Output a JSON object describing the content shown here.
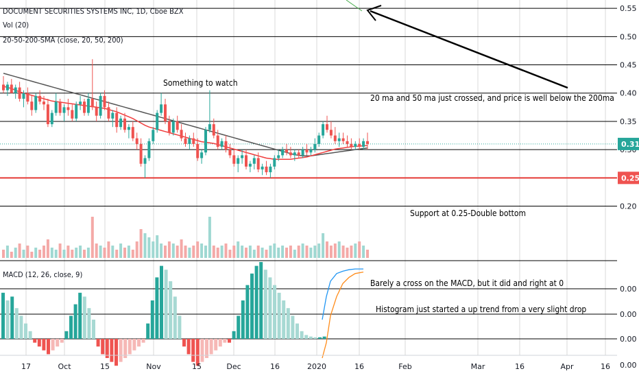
{
  "header": {
    "title": "DOCUMENT SECURITIES SYSTEMS INC, 1D, Cboe BZX",
    "vol_label": "Vol (20)",
    "sma_label": "20-50-200-SMA (close, 20, 50, 200)",
    "macd_label": "MACD (12, 26, close, 9)"
  },
  "annotations": {
    "watch": "Something to watch",
    "ma_cross": "20 ma and 50 ma just crossed, and price is well below the 200ma",
    "support": "Support at 0.25-Double bottom",
    "macd_cross": "Barely a cross on the MACD, but it did and right at 0",
    "histogram": "Histogram just started a up trend from a very slight drop"
  },
  "colors": {
    "up": "#26a69a",
    "down": "#ef5350",
    "vol_up": "#9fd8d2",
    "vol_down": "#f4a9a7",
    "sma20": "#f03c3c",
    "sma50": "#555555",
    "macd_line": "#2196f3",
    "signal_line": "#ff8c1a",
    "support_line": "#e53935",
    "last_price_badge": "#26a69a",
    "support_badge": "#ef5350"
  },
  "chart_data": {
    "type": "candlestick",
    "x_tick_labels": [
      "17",
      "Oct",
      "15",
      "Nov",
      "15",
      "Dec",
      "16",
      "2020",
      "16",
      "Feb",
      "Mar",
      "16",
      "Apr",
      "16"
    ],
    "price_axis": {
      "ticks": [
        "0.55",
        "0.50",
        "0.45",
        "0.40",
        "0.35",
        "0.30",
        "0.20"
      ],
      "ylim": [
        0.14,
        0.555
      ],
      "last_price_label": "0.31",
      "last_price": 0.31,
      "support_label": "0.25",
      "support_price": 0.25
    },
    "macd_axis": {
      "ticks": [
        "0.00",
        "0.00",
        "0.00",
        "0.00"
      ]
    },
    "price_candles_ohlc": [
      [
        0.415,
        0.43,
        0.4,
        0.405
      ],
      [
        0.405,
        0.42,
        0.395,
        0.415
      ],
      [
        0.415,
        0.425,
        0.4,
        0.4
      ],
      [
        0.4,
        0.415,
        0.39,
        0.41
      ],
      [
        0.41,
        0.42,
        0.385,
        0.39
      ],
      [
        0.39,
        0.405,
        0.375,
        0.4
      ],
      [
        0.4,
        0.41,
        0.38,
        0.385
      ],
      [
        0.385,
        0.395,
        0.36,
        0.37
      ],
      [
        0.37,
        0.4,
        0.365,
        0.395
      ],
      [
        0.395,
        0.405,
        0.38,
        0.385
      ],
      [
        0.385,
        0.395,
        0.37,
        0.38
      ],
      [
        0.38,
        0.39,
        0.34,
        0.345
      ],
      [
        0.345,
        0.37,
        0.34,
        0.365
      ],
      [
        0.365,
        0.4,
        0.36,
        0.385
      ],
      [
        0.385,
        0.39,
        0.36,
        0.365
      ],
      [
        0.365,
        0.38,
        0.35,
        0.375
      ],
      [
        0.375,
        0.39,
        0.36,
        0.37
      ],
      [
        0.37,
        0.38,
        0.35,
        0.355
      ],
      [
        0.355,
        0.385,
        0.35,
        0.38
      ],
      [
        0.38,
        0.395,
        0.37,
        0.385
      ],
      [
        0.385,
        0.39,
        0.36,
        0.365
      ],
      [
        0.365,
        0.4,
        0.36,
        0.39
      ],
      [
        0.39,
        0.46,
        0.37,
        0.375
      ],
      [
        0.375,
        0.385,
        0.35,
        0.36
      ],
      [
        0.36,
        0.4,
        0.355,
        0.395
      ],
      [
        0.395,
        0.405,
        0.37,
        0.375
      ],
      [
        0.375,
        0.385,
        0.35,
        0.355
      ],
      [
        0.355,
        0.37,
        0.34,
        0.365
      ],
      [
        0.365,
        0.375,
        0.33,
        0.34
      ],
      [
        0.34,
        0.36,
        0.335,
        0.355
      ],
      [
        0.355,
        0.365,
        0.33,
        0.335
      ],
      [
        0.335,
        0.345,
        0.32,
        0.34
      ],
      [
        0.34,
        0.35,
        0.315,
        0.32
      ],
      [
        0.32,
        0.33,
        0.3,
        0.31
      ],
      [
        0.31,
        0.32,
        0.27,
        0.275
      ],
      [
        0.275,
        0.29,
        0.25,
        0.285
      ],
      [
        0.285,
        0.32,
        0.28,
        0.315
      ],
      [
        0.315,
        0.34,
        0.31,
        0.335
      ],
      [
        0.335,
        0.37,
        0.33,
        0.365
      ],
      [
        0.365,
        0.4,
        0.36,
        0.38
      ],
      [
        0.38,
        0.39,
        0.345,
        0.35
      ],
      [
        0.35,
        0.36,
        0.325,
        0.33
      ],
      [
        0.33,
        0.355,
        0.325,
        0.35
      ],
      [
        0.35,
        0.36,
        0.33,
        0.335
      ],
      [
        0.335,
        0.345,
        0.315,
        0.32
      ],
      [
        0.32,
        0.33,
        0.305,
        0.31
      ],
      [
        0.31,
        0.325,
        0.3,
        0.32
      ],
      [
        0.32,
        0.33,
        0.305,
        0.31
      ],
      [
        0.31,
        0.32,
        0.28,
        0.285
      ],
      [
        0.285,
        0.3,
        0.275,
        0.295
      ],
      [
        0.295,
        0.34,
        0.29,
        0.335
      ],
      [
        0.335,
        0.405,
        0.33,
        0.345
      ],
      [
        0.345,
        0.355,
        0.32,
        0.325
      ],
      [
        0.325,
        0.335,
        0.3,
        0.305
      ],
      [
        0.305,
        0.32,
        0.3,
        0.315
      ],
      [
        0.315,
        0.325,
        0.295,
        0.3
      ],
      [
        0.3,
        0.31,
        0.285,
        0.29
      ],
      [
        0.29,
        0.3,
        0.27,
        0.275
      ],
      [
        0.275,
        0.29,
        0.26,
        0.285
      ],
      [
        0.285,
        0.3,
        0.275,
        0.29
      ],
      [
        0.29,
        0.3,
        0.265,
        0.27
      ],
      [
        0.27,
        0.28,
        0.26,
        0.275
      ],
      [
        0.275,
        0.29,
        0.265,
        0.285
      ],
      [
        0.285,
        0.295,
        0.26,
        0.265
      ],
      [
        0.265,
        0.275,
        0.255,
        0.27
      ],
      [
        0.27,
        0.28,
        0.255,
        0.26
      ],
      [
        0.26,
        0.275,
        0.25,
        0.27
      ],
      [
        0.27,
        0.29,
        0.265,
        0.285
      ],
      [
        0.285,
        0.3,
        0.28,
        0.29
      ],
      [
        0.29,
        0.305,
        0.285,
        0.3
      ],
      [
        0.3,
        0.31,
        0.29,
        0.295
      ],
      [
        0.295,
        0.305,
        0.285,
        0.29
      ],
      [
        0.29,
        0.3,
        0.28,
        0.295
      ],
      [
        0.295,
        0.3,
        0.285,
        0.29
      ],
      [
        0.29,
        0.305,
        0.285,
        0.3
      ],
      [
        0.3,
        0.31,
        0.29,
        0.295
      ],
      [
        0.295,
        0.305,
        0.29,
        0.3
      ],
      [
        0.3,
        0.32,
        0.295,
        0.31
      ],
      [
        0.31,
        0.33,
        0.305,
        0.325
      ],
      [
        0.325,
        0.35,
        0.32,
        0.345
      ],
      [
        0.345,
        0.36,
        0.33,
        0.335
      ],
      [
        0.335,
        0.35,
        0.32,
        0.325
      ],
      [
        0.325,
        0.34,
        0.31,
        0.315
      ],
      [
        0.315,
        0.33,
        0.305,
        0.32
      ],
      [
        0.32,
        0.33,
        0.31,
        0.315
      ],
      [
        0.315,
        0.325,
        0.305,
        0.31
      ],
      [
        0.31,
        0.32,
        0.3,
        0.305
      ],
      [
        0.305,
        0.315,
        0.3,
        0.31
      ],
      [
        0.31,
        0.32,
        0.3,
        0.305
      ],
      [
        0.305,
        0.32,
        0.3,
        0.315
      ],
      [
        0.315,
        0.33,
        0.3,
        0.31
      ]
    ],
    "sma20": [
      0.412,
      0.41,
      0.408,
      0.405,
      0.402,
      0.4,
      0.398,
      0.396,
      0.394,
      0.392,
      0.39,
      0.388,
      0.386,
      0.385,
      0.384,
      0.383,
      0.382,
      0.381,
      0.38,
      0.379,
      0.378,
      0.377,
      0.376,
      0.375,
      0.374,
      0.373,
      0.371,
      0.369,
      0.367,
      0.364,
      0.361,
      0.358,
      0.355,
      0.351,
      0.347,
      0.343,
      0.34,
      0.338,
      0.336,
      0.334,
      0.332,
      0.33,
      0.328,
      0.326,
      0.324,
      0.322,
      0.32,
      0.318,
      0.316,
      0.314,
      0.313,
      0.312,
      0.311,
      0.309,
      0.307,
      0.305,
      0.303,
      0.301,
      0.299,
      0.297,
      0.295,
      0.293,
      0.291,
      0.289,
      0.287,
      0.285,
      0.284,
      0.283,
      0.283,
      0.283,
      0.283,
      0.283,
      0.284,
      0.285,
      0.286,
      0.287,
      0.289,
      0.291,
      0.293,
      0.295,
      0.297,
      0.299,
      0.301,
      0.302,
      0.303,
      0.304,
      0.305,
      0.306,
      0.306,
      0.307,
      0.307
    ],
    "sma50": [
      0.435,
      0.433,
      0.431,
      0.429,
      0.427,
      0.425,
      0.423,
      0.421,
      0.419,
      0.417,
      0.415,
      0.413,
      0.411,
      0.409,
      0.407,
      0.405,
      0.403,
      0.401,
      0.399,
      0.397,
      0.395,
      0.393,
      0.391,
      0.389,
      0.387,
      0.385,
      0.383,
      0.381,
      0.379,
      0.377,
      0.375,
      0.373,
      0.371,
      0.369,
      0.367,
      0.365,
      0.363,
      0.361,
      0.359,
      0.357,
      0.355,
      0.353,
      0.351,
      0.349,
      0.347,
      0.345,
      0.343,
      0.341,
      0.339,
      0.337,
      0.335,
      0.333,
      0.331,
      0.329,
      0.327,
      0.325,
      0.323,
      0.321,
      0.319,
      0.317,
      0.315,
      0.313,
      0.311,
      0.309,
      0.307,
      0.305,
      0.303,
      0.301,
      0.299,
      0.297,
      0.295,
      0.293,
      0.291,
      0.29,
      0.289,
      0.289,
      0.289,
      0.29,
      0.291,
      0.292,
      0.293,
      0.294,
      0.295,
      0.296,
      0.297,
      0.298,
      0.299,
      0.3,
      0.301,
      0.302,
      0.303
    ],
    "volume": [
      0.2,
      0.3,
      0.15,
      0.25,
      0.35,
      0.2,
      0.3,
      0.15,
      0.25,
      0.2,
      0.3,
      0.45,
      0.25,
      0.2,
      0.35,
      0.2,
      0.3,
      0.2,
      0.25,
      0.3,
      0.2,
      0.25,
      1.0,
      0.35,
      0.3,
      0.25,
      0.4,
      0.3,
      0.2,
      0.35,
      0.25,
      0.3,
      0.2,
      0.4,
      0.7,
      0.6,
      0.5,
      0.4,
      0.55,
      0.35,
      0.3,
      0.4,
      0.35,
      0.3,
      0.45,
      0.3,
      0.25,
      0.3,
      0.4,
      0.35,
      0.3,
      1.0,
      0.3,
      0.25,
      0.3,
      0.35,
      0.2,
      0.3,
      0.4,
      0.3,
      0.25,
      0.3,
      0.2,
      0.3,
      0.25,
      0.2,
      0.3,
      0.35,
      0.25,
      0.3,
      0.25,
      0.3,
      0.2,
      0.3,
      0.35,
      0.3,
      0.25,
      0.3,
      0.35,
      0.6,
      0.4,
      0.3,
      0.35,
      0.4,
      0.3,
      0.25,
      0.3,
      0.35,
      0.4,
      0.3,
      0.2
    ],
    "macd_histogram": [
      0.6,
      0.5,
      0.55,
      0.4,
      0.3,
      0.2,
      0.1,
      -0.05,
      -0.1,
      -0.15,
      -0.2,
      -0.15,
      -0.1,
      -0.05,
      0.1,
      0.3,
      0.45,
      0.6,
      0.55,
      0.4,
      0.25,
      -0.1,
      -0.2,
      -0.25,
      -0.3,
      -0.35,
      -0.3,
      -0.25,
      -0.2,
      -0.15,
      -0.1,
      -0.05,
      0.2,
      0.5,
      0.8,
      0.95,
      0.9,
      0.75,
      0.55,
      0.3,
      -0.1,
      -0.2,
      -0.3,
      -0.35,
      -0.3,
      -0.25,
      -0.2,
      -0.15,
      -0.1,
      -0.05,
      -0.05,
      0.1,
      0.3,
      0.5,
      0.7,
      0.85,
      0.95,
      1.0,
      0.9,
      0.8,
      0.7,
      0.6,
      0.5,
      0.4,
      0.3,
      0.2,
      0.1,
      0.05,
      0.03,
      0.02,
      0.02,
      0.03
    ],
    "macd_line_points": [
      [
        0.0,
        0.25
      ],
      [
        0.1,
        0.55
      ],
      [
        0.2,
        0.75
      ],
      [
        0.35,
        0.85
      ],
      [
        0.5,
        0.88
      ],
      [
        0.65,
        0.9
      ],
      [
        0.8,
        0.91
      ],
      [
        1.0,
        0.91
      ]
    ],
    "signal_line_points": [
      [
        0.0,
        -0.25
      ],
      [
        0.1,
        -0.05
      ],
      [
        0.2,
        0.3
      ],
      [
        0.35,
        0.55
      ],
      [
        0.5,
        0.72
      ],
      [
        0.65,
        0.8
      ],
      [
        0.8,
        0.85
      ],
      [
        1.0,
        0.87
      ]
    ]
  }
}
